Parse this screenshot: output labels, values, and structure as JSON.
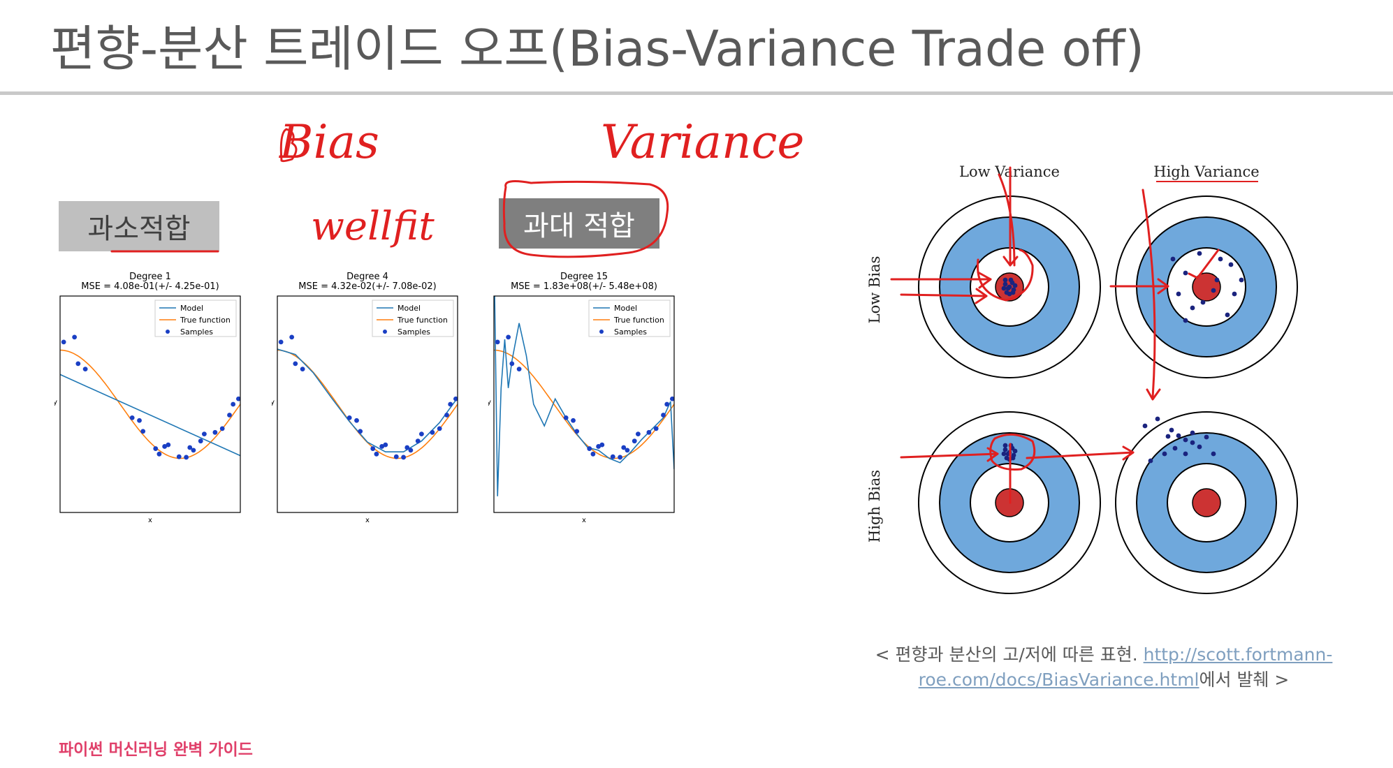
{
  "slide": {
    "title": "편향-분산 트레이드 오프(Bias-Variance Trade off)",
    "footer": "파이썬 머신러닝 완벽 가이드"
  },
  "labels": {
    "underfit": "과소적합",
    "overfit": "과대 적합"
  },
  "handwriting": {
    "bias": "Bias",
    "variance": "Variance",
    "wellfit": "wellfit"
  },
  "legend": {
    "model": "Model",
    "true_function": "True function",
    "samples": "Samples"
  },
  "axis": {
    "x": "x",
    "y": "y"
  },
  "targets": {
    "low_variance": "Low Variance",
    "high_variance": "High Variance",
    "low_bias": "Low Bias",
    "high_bias": "High Bias"
  },
  "caption": {
    "prefix": "< 편향과 분산의 고/저에 따른 표현. ",
    "link": "http://scott.fortmann-roe.com/docs/BiasVariance.html",
    "suffix": "에서 발췌 >"
  },
  "colors": {
    "model": "#1f77b4",
    "true_function": "#ff7f0e",
    "samples": "#1a3fc4",
    "annotation": "#e02020"
  },
  "chart_data": [
    {
      "type": "line",
      "title": "Degree 1",
      "subtitle": "MSE = 4.08e-01(+/- 4.25e-01)",
      "xlabel": "x",
      "ylabel": "y",
      "xlim": [
        0,
        1
      ],
      "ylim": [
        -2,
        2
      ],
      "legend": "top-right",
      "samples": {
        "x": [
          0.02,
          0.08,
          0.1,
          0.14,
          0.4,
          0.44,
          0.46,
          0.53,
          0.55,
          0.58,
          0.6,
          0.66,
          0.7,
          0.72,
          0.74,
          0.78,
          0.8,
          0.86,
          0.9,
          0.94,
          0.96,
          0.99
        ],
        "y": [
          1.15,
          1.24,
          0.75,
          0.65,
          -0.25,
          -0.3,
          -0.5,
          -0.82,
          -0.92,
          -0.78,
          -0.75,
          -0.97,
          -0.98,
          -0.8,
          -0.85,
          -0.68,
          -0.55,
          -0.52,
          -0.45,
          -0.2,
          0.0,
          0.1
        ]
      },
      "series": [
        {
          "name": "Model",
          "points": [
            [
              0,
              0.55
            ],
            [
              1,
              -0.95
            ]
          ]
        }
      ]
    },
    {
      "type": "line",
      "title": "Degree 4",
      "subtitle": "MSE = 4.32e-02(+/- 7.08e-02)",
      "xlabel": "x",
      "ylabel": "y",
      "xlim": [
        0,
        1
      ],
      "ylim": [
        -2,
        2
      ],
      "legend": "top-right",
      "samples": {
        "x": [
          0.02,
          0.08,
          0.1,
          0.14,
          0.4,
          0.44,
          0.46,
          0.53,
          0.55,
          0.58,
          0.6,
          0.66,
          0.7,
          0.72,
          0.74,
          0.78,
          0.8,
          0.86,
          0.9,
          0.94,
          0.96,
          0.99
        ],
        "y": [
          1.15,
          1.24,
          0.75,
          0.65,
          -0.25,
          -0.3,
          -0.5,
          -0.82,
          -0.92,
          -0.78,
          -0.75,
          -0.97,
          -0.98,
          -0.8,
          -0.85,
          -0.68,
          -0.55,
          -0.52,
          -0.45,
          -0.2,
          0.0,
          0.1
        ]
      },
      "series": [
        {
          "name": "Model",
          "points": [
            [
              0,
              1.02
            ],
            [
              0.1,
              0.92
            ],
            [
              0.2,
              0.58
            ],
            [
              0.3,
              0.12
            ],
            [
              0.4,
              -0.32
            ],
            [
              0.5,
              -0.7
            ],
            [
              0.6,
              -0.88
            ],
            [
              0.7,
              -0.88
            ],
            [
              0.8,
              -0.68
            ],
            [
              0.9,
              -0.34
            ],
            [
              1.0,
              0.12
            ]
          ]
        }
      ]
    },
    {
      "type": "line",
      "title": "Degree 15",
      "subtitle": "MSE = 1.83e+08(+/- 5.48e+08)",
      "xlabel": "x",
      "ylabel": "y",
      "xlim": [
        0,
        1
      ],
      "ylim": [
        -2,
        2
      ],
      "legend": "top-right",
      "samples": {
        "x": [
          0.02,
          0.08,
          0.1,
          0.14,
          0.4,
          0.44,
          0.46,
          0.53,
          0.55,
          0.58,
          0.6,
          0.66,
          0.7,
          0.72,
          0.74,
          0.78,
          0.8,
          0.86,
          0.9,
          0.94,
          0.96,
          0.99
        ],
        "y": [
          1.15,
          1.24,
          0.75,
          0.65,
          -0.25,
          -0.3,
          -0.5,
          -0.82,
          -0.92,
          -0.78,
          -0.75,
          -0.97,
          -0.98,
          -0.8,
          -0.85,
          -0.68,
          -0.55,
          -0.52,
          -0.45,
          -0.2,
          0.0,
          0.1
        ]
      },
      "series": [
        {
          "name": "Model",
          "points": [
            [
              0.0,
              3.0
            ],
            [
              0.02,
              -1.7
            ],
            [
              0.04,
              0.3
            ],
            [
              0.06,
              1.2
            ],
            [
              0.08,
              0.3
            ],
            [
              0.1,
              0.8
            ],
            [
              0.14,
              1.5
            ],
            [
              0.18,
              0.9
            ],
            [
              0.22,
              0.0
            ],
            [
              0.28,
              -0.4
            ],
            [
              0.34,
              0.1
            ],
            [
              0.4,
              -0.25
            ],
            [
              0.46,
              -0.55
            ],
            [
              0.52,
              -0.8
            ],
            [
              0.58,
              -0.85
            ],
            [
              0.64,
              -1.0
            ],
            [
              0.7,
              -1.08
            ],
            [
              0.76,
              -0.88
            ],
            [
              0.82,
              -0.65
            ],
            [
              0.88,
              -0.45
            ],
            [
              0.94,
              -0.25
            ],
            [
              0.98,
              0.05
            ],
            [
              1.0,
              -1.2
            ]
          ]
        }
      ]
    }
  ]
}
